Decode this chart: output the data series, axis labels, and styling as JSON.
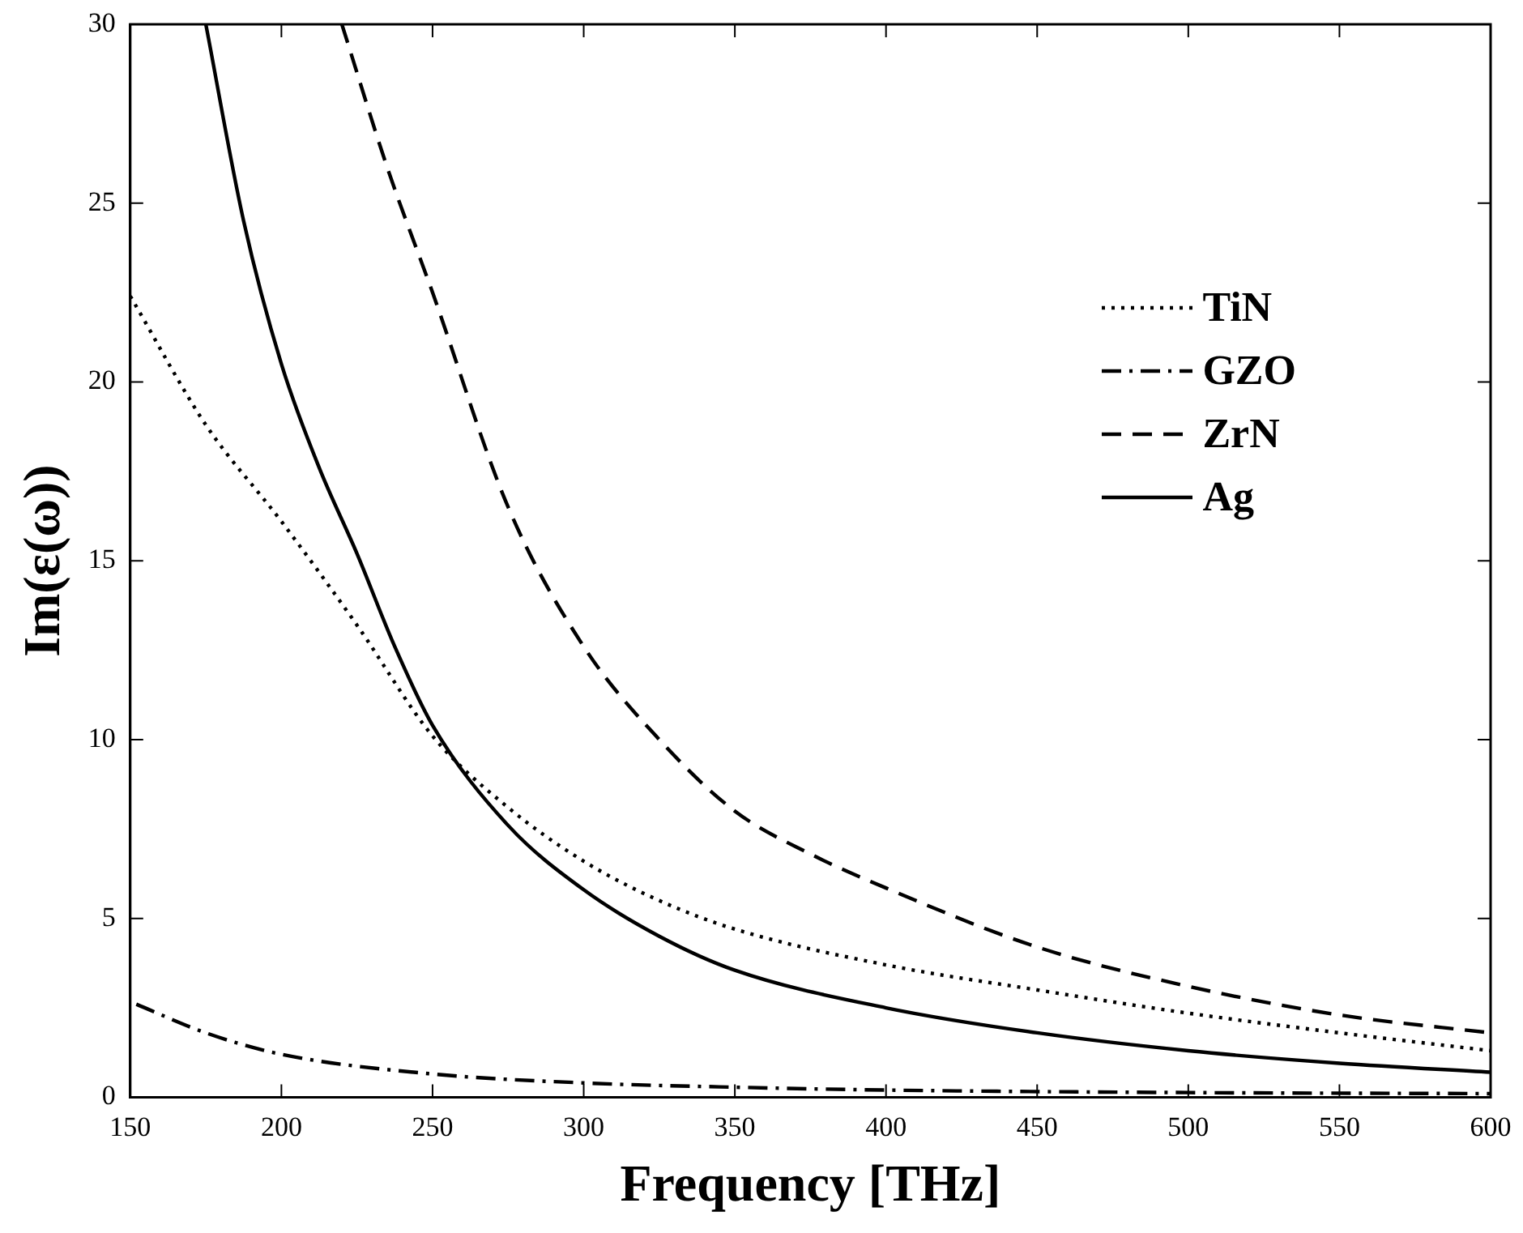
{
  "chart_data": {
    "type": "line",
    "xlabel": "Frequency [THz]",
    "ylabel": "Im(ε(ω))",
    "xlim": [
      150,
      600
    ],
    "xticks": [
      150,
      200,
      250,
      300,
      350,
      400,
      450,
      500,
      550,
      600
    ],
    "ylim": [
      0,
      30
    ],
    "yticks": [
      0,
      5,
      10,
      15,
      20,
      25,
      30
    ],
    "grid": false,
    "legend": "top right",
    "marker": "none",
    "series": [
      {
        "name": "TiN",
        "color": "#000000",
        "line_style": "dotted",
        "x": [
          150,
          175,
          200,
          225,
          250,
          275,
          300,
          325,
          350,
          400,
          450,
          500,
          550,
          600
        ],
        "values": [
          22.4,
          18.8,
          16.1,
          13.2,
          10.1,
          8.1,
          6.6,
          5.5,
          4.7,
          3.7,
          3.0,
          2.35,
          1.8,
          1.3
        ]
      },
      {
        "name": "GZO",
        "color": "#000000",
        "line_style": "dashdot",
        "x": [
          152,
          175,
          200,
          250,
          300,
          350,
          400,
          500,
          600
        ],
        "values": [
          2.6,
          1.8,
          1.2,
          0.65,
          0.4,
          0.28,
          0.2,
          0.13,
          0.1
        ]
      },
      {
        "name": "ZrN",
        "color": "#000000",
        "line_style": "dashed",
        "x": [
          220,
          235,
          250,
          275,
          300,
          325,
          350,
          375,
          400,
          450,
          500,
          550,
          600
        ],
        "values": [
          30,
          26,
          22.5,
          16.5,
          12.6,
          10,
          8.0,
          6.8,
          5.85,
          4.2,
          3.1,
          2.3,
          1.8
        ]
      },
      {
        "name": "Ag",
        "color": "#000000",
        "line_style": "solid",
        "x": [
          175,
          187.5,
          200,
          212.5,
          225,
          237.5,
          250,
          275,
          300,
          325,
          350,
          400,
          450,
          500,
          550,
          600
        ],
        "values": [
          30,
          24.5,
          20.5,
          17.6,
          15.2,
          12.6,
          10.4,
          7.6,
          5.8,
          4.5,
          3.55,
          2.5,
          1.8,
          1.3,
          0.95,
          0.7
        ]
      }
    ]
  }
}
